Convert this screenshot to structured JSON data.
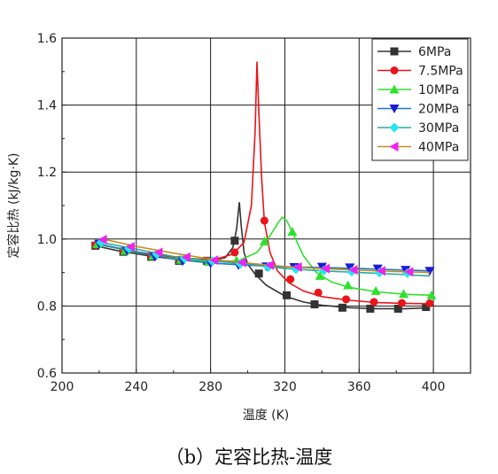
{
  "chart_data": {
    "type": "line",
    "xlabel": "温度 (K)",
    "ylabel": "定容比热 (kJ/kg·K)",
    "caption": "（b）定容比热-温度",
    "xlim": [
      200,
      420
    ],
    "ylim": [
      0.6,
      1.6
    ],
    "x_ticks": [
      200,
      240,
      280,
      320,
      360,
      400
    ],
    "y_ticks": [
      0.6,
      0.8,
      1.0,
      1.2,
      1.4,
      1.6
    ],
    "x_tick_labels": [
      "200",
      "240",
      "280",
      "320",
      "360",
      "400"
    ],
    "y_tick_labels": [
      "0.6",
      "0.8",
      "1.0",
      "1.2",
      "1.4",
      "1.6"
    ],
    "grid": true,
    "legend_position": "top-right",
    "series": [
      {
        "name": "6MPa",
        "color": "#333333",
        "marker": "square",
        "line": [
          [
            218,
            0.98
          ],
          [
            230,
            0.965
          ],
          [
            250,
            0.947
          ],
          [
            270,
            0.935
          ],
          [
            280,
            0.935
          ],
          [
            288,
            0.945
          ],
          [
            292,
            0.975
          ],
          [
            294,
            1.03
          ],
          [
            295.5,
            1.11
          ],
          [
            296.5,
            1.04
          ],
          [
            298,
            0.96
          ],
          [
            300,
            0.925
          ],
          [
            304,
            0.895
          ],
          [
            310,
            0.862
          ],
          [
            320,
            0.83
          ],
          [
            330,
            0.812
          ],
          [
            340,
            0.802
          ],
          [
            355,
            0.795
          ],
          [
            370,
            0.792
          ],
          [
            385,
            0.792
          ],
          [
            398,
            0.795
          ]
        ],
        "markers": [
          [
            218,
            0.98
          ],
          [
            233,
            0.962
          ],
          [
            248,
            0.947
          ],
          [
            263,
            0.935
          ],
          [
            278,
            0.935
          ],
          [
            293,
            0.995
          ],
          [
            306,
            0.897
          ],
          [
            321,
            0.832
          ],
          [
            336,
            0.805
          ],
          [
            351,
            0.795
          ],
          [
            366,
            0.792
          ],
          [
            381,
            0.792
          ],
          [
            396,
            0.797
          ]
        ]
      },
      {
        "name": "7.5MPa",
        "color": "#e8151b",
        "marker": "circle",
        "line": [
          [
            218,
            0.985
          ],
          [
            240,
            0.962
          ],
          [
            260,
            0.945
          ],
          [
            275,
            0.94
          ],
          [
            285,
            0.943
          ],
          [
            292,
            0.955
          ],
          [
            298,
            0.99
          ],
          [
            302,
            1.1
          ],
          [
            304,
            1.32
          ],
          [
            305,
            1.53
          ],
          [
            306,
            1.38
          ],
          [
            307.5,
            1.18
          ],
          [
            309,
            1.05
          ],
          [
            312,
            0.96
          ],
          [
            316,
            0.905
          ],
          [
            322,
            0.87
          ],
          [
            330,
            0.845
          ],
          [
            340,
            0.828
          ],
          [
            355,
            0.817
          ],
          [
            370,
            0.81
          ],
          [
            385,
            0.808
          ],
          [
            398,
            0.807
          ]
        ],
        "markers": [
          [
            218,
            0.982
          ],
          [
            233,
            0.965
          ],
          [
            248,
            0.95
          ],
          [
            263,
            0.938
          ],
          [
            278,
            0.935
          ],
          [
            293,
            0.96
          ],
          [
            309,
            1.055
          ],
          [
            323,
            0.88
          ],
          [
            338,
            0.84
          ],
          [
            353,
            0.82
          ],
          [
            368,
            0.812
          ],
          [
            383,
            0.809
          ],
          [
            398,
            0.808
          ]
        ]
      },
      {
        "name": "10MPa",
        "color": "#2fe02f",
        "marker": "triangle-up",
        "line": [
          [
            219,
            0.985
          ],
          [
            240,
            0.96
          ],
          [
            260,
            0.942
          ],
          [
            280,
            0.933
          ],
          [
            295,
            0.935
          ],
          [
            305,
            0.96
          ],
          [
            312,
            1.01
          ],
          [
            316,
            1.045
          ],
          [
            318.5,
            1.065
          ],
          [
            321,
            1.055
          ],
          [
            325,
            1.01
          ],
          [
            330,
            0.95
          ],
          [
            337,
            0.9
          ],
          [
            345,
            0.872
          ],
          [
            355,
            0.855
          ],
          [
            370,
            0.842
          ],
          [
            385,
            0.835
          ],
          [
            399,
            0.832
          ]
        ],
        "markers": [
          [
            219,
            0.985
          ],
          [
            234,
            0.965
          ],
          [
            249,
            0.95
          ],
          [
            264,
            0.938
          ],
          [
            279,
            0.932
          ],
          [
            294,
            0.936
          ],
          [
            309,
            0.993
          ],
          [
            324,
            1.022
          ],
          [
            339,
            0.89
          ],
          [
            354,
            0.862
          ],
          [
            369,
            0.845
          ],
          [
            384,
            0.836
          ],
          [
            399,
            0.832
          ]
        ]
      },
      {
        "name": "20MPa",
        "color": "#1f77d0",
        "marker": "triangle-down",
        "line": [
          [
            220,
            0.985
          ],
          [
            240,
            0.962
          ],
          [
            260,
            0.94
          ],
          [
            280,
            0.928
          ],
          [
            300,
            0.922
          ],
          [
            320,
            0.917
          ],
          [
            340,
            0.915
          ],
          [
            360,
            0.912
          ],
          [
            380,
            0.908
          ],
          [
            398,
            0.905
          ]
        ],
        "markers": [
          [
            220,
            0.986
          ],
          [
            235,
            0.966
          ],
          [
            250,
            0.947
          ],
          [
            265,
            0.934
          ],
          [
            280,
            0.927
          ],
          [
            295,
            0.922
          ],
          [
            310,
            0.918
          ],
          [
            325,
            0.916
          ],
          [
            340,
            0.917
          ],
          [
            355,
            0.915
          ],
          [
            370,
            0.912
          ],
          [
            385,
            0.908
          ],
          [
            398,
            0.905
          ]
        ]
      },
      {
        "name": "30MPa",
        "color": "#2aa9a0",
        "marker": "diamond",
        "line": [
          [
            221,
            0.99
          ],
          [
            240,
            0.97
          ],
          [
            260,
            0.948
          ],
          [
            280,
            0.935
          ],
          [
            300,
            0.925
          ],
          [
            320,
            0.912
          ],
          [
            340,
            0.905
          ],
          [
            360,
            0.9
          ],
          [
            380,
            0.895
          ],
          [
            398,
            0.89
          ]
        ],
        "markers": [
          [
            221,
            0.99
          ],
          [
            236,
            0.972
          ],
          [
            251,
            0.955
          ],
          [
            266,
            0.942
          ],
          [
            281,
            0.934
          ],
          [
            296,
            0.926
          ],
          [
            311,
            0.916
          ],
          [
            326,
            0.91
          ],
          [
            341,
            0.906
          ],
          [
            356,
            0.903
          ],
          [
            371,
            0.9
          ],
          [
            386,
            0.898
          ]
        ]
      },
      {
        "name": "40MPa",
        "color": "#c98a1e",
        "marker": "triangle-left",
        "line": [
          [
            222,
            1.0
          ],
          [
            240,
            0.978
          ],
          [
            260,
            0.958
          ],
          [
            280,
            0.94
          ],
          [
            300,
            0.928
          ],
          [
            320,
            0.918
          ],
          [
            340,
            0.912
          ],
          [
            360,
            0.907
          ],
          [
            380,
            0.903
          ],
          [
            398,
            0.9
          ]
        ],
        "markers": [
          [
            222,
            0.998
          ],
          [
            237,
            0.977
          ],
          [
            252,
            0.96
          ],
          [
            267,
            0.946
          ],
          [
            282,
            0.937
          ],
          [
            297,
            0.93
          ],
          [
            312,
            0.922
          ],
          [
            327,
            0.916
          ],
          [
            342,
            0.912
          ],
          [
            357,
            0.908
          ],
          [
            372,
            0.905
          ],
          [
            387,
            0.902
          ]
        ]
      }
    ]
  },
  "colors": {
    "legend_series_6": "#333333",
    "legend_series_75": "#e8151b",
    "legend_series_10": "#2fe02f",
    "legend_series_20": "#1f77d0",
    "legend_series_30": "#2aa9a0",
    "legend_series_40": "#c98a1e",
    "marker_fill_20": "#1a1ad8",
    "marker_fill_30": "#22e6f2",
    "marker_fill_40": "#ee22ee"
  }
}
